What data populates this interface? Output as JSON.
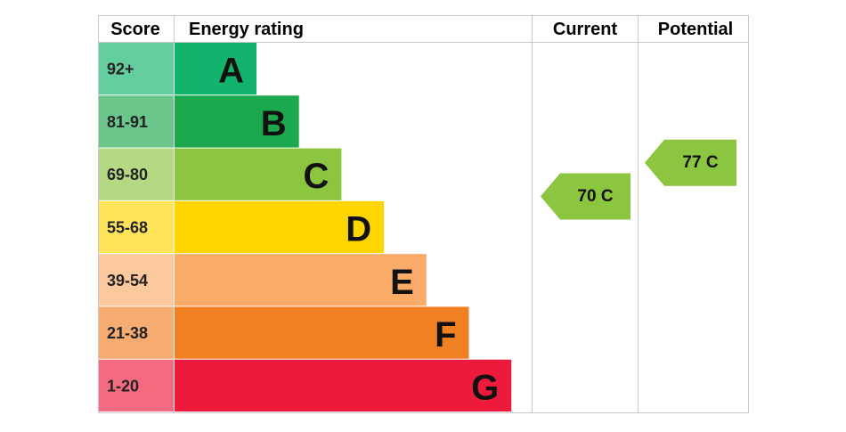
{
  "chart_data": {
    "type": "energy-rating",
    "headers": {
      "score": "Score",
      "rating": "Energy rating",
      "current": "Current",
      "potential": "Potential"
    },
    "bands": [
      {
        "score": "92+",
        "letter": "A",
        "color": "#12b36b"
      },
      {
        "score": "81-91",
        "letter": "B",
        "color": "#1ca84d"
      },
      {
        "score": "69-80",
        "letter": "C",
        "color": "#8cc53f"
      },
      {
        "score": "55-68",
        "letter": "D",
        "color": "#ffd500"
      },
      {
        "score": "39-54",
        "letter": "E",
        "color": "#fbab68"
      },
      {
        "score": "21-38",
        "letter": "F",
        "color": "#f18023"
      },
      {
        "score": "1-20",
        "letter": "G",
        "color": "#ee1a3c"
      }
    ],
    "current": {
      "value": 70,
      "value_label": "70 C"
    },
    "potential": {
      "value": 77,
      "value_label": "77 C"
    }
  }
}
